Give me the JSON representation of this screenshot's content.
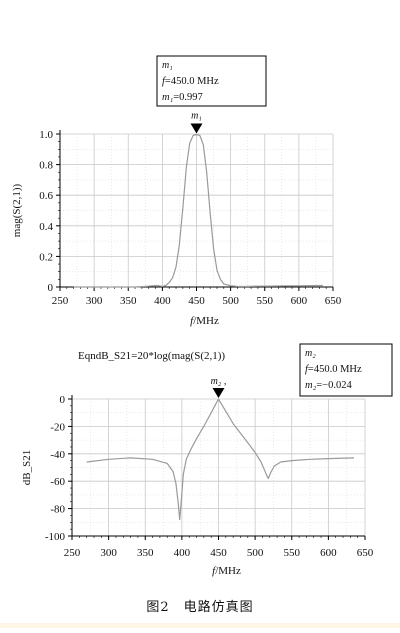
{
  "figure": {
    "caption": "图2　电路仿真图"
  },
  "colors": {
    "curve": "#9a9a9a",
    "grid": "#c8c8c8",
    "axis": "#000000",
    "bottom_strip": "#fdf6e6"
  },
  "chart_data": [
    {
      "type": "line",
      "title": "",
      "xlabel": "f/MHz",
      "ylabel": "mag(S(2,1))",
      "xlim": [
        250,
        650
      ],
      "ylim": [
        0,
        1.0
      ],
      "x_ticks": [
        "250",
        "300",
        "350",
        "400",
        "450",
        "500",
        "550",
        "600",
        "650"
      ],
      "y_ticks": [
        "0",
        "0.2",
        "0.4",
        "0.6",
        "0.8",
        "1.0"
      ],
      "grid": true,
      "series": [
        {
          "x": [
            270,
            300,
            330,
            360,
            380,
            390,
            395,
            400,
            405,
            410,
            415,
            420,
            425,
            430,
            435,
            440,
            445,
            450,
            455,
            460,
            465,
            470,
            475,
            480,
            485,
            490,
            500,
            510,
            520,
            540,
            560,
            580,
            600,
            620,
            635
          ],
          "y": [
            0.0,
            0.0,
            0.0,
            0.0,
            0.005,
            0.01,
            0.008,
            0.004,
            0.01,
            0.03,
            0.06,
            0.13,
            0.28,
            0.52,
            0.78,
            0.94,
            0.99,
            0.997,
            0.99,
            0.93,
            0.75,
            0.48,
            0.25,
            0.11,
            0.05,
            0.02,
            0.008,
            0.004,
            0.003,
            0.005,
            0.006,
            0.007,
            0.008,
            0.009,
            0.01
          ]
        }
      ],
      "marker": {
        "name": "m1",
        "x": 450,
        "y": 0.997,
        "label_name": "m₁",
        "label_f": "f=450.0  MHz",
        "label_value": "m₁=0.997",
        "arrow_label": "m₁"
      }
    },
    {
      "type": "line",
      "title": "EqndB_S21=20*log(mag(S(2,1))",
      "xlabel": "f/MHz",
      "ylabel": "dB_S21",
      "xlim": [
        250,
        650
      ],
      "ylim": [
        -100,
        0
      ],
      "x_ticks": [
        "250",
        "300",
        "350",
        "400",
        "450",
        "500",
        "550",
        "600",
        "650"
      ],
      "y_ticks": [
        "0",
        "-20",
        "-40",
        "-60",
        "-80",
        "-100"
      ],
      "grid": true,
      "series": [
        {
          "x": [
            270,
            300,
            330,
            360,
            380,
            388,
            392,
            395,
            397,
            399,
            402,
            406,
            412,
            420,
            430,
            440,
            448,
            450,
            452,
            460,
            470,
            480,
            490,
            500,
            508,
            513,
            516,
            518,
            521,
            526,
            535,
            550,
            575,
            600,
            635
          ],
          "y": [
            -46,
            -44,
            -43,
            -44,
            -47,
            -53,
            -62,
            -76,
            -88,
            -76,
            -55,
            -44,
            -37,
            -29,
            -20,
            -10,
            -2,
            -0.024,
            -2,
            -9,
            -18,
            -25,
            -32,
            -39,
            -46,
            -52,
            -56,
            -58,
            -54,
            -49,
            -46,
            -45,
            -44,
            -43.5,
            -43
          ],
          "notch_x": 397
        }
      ],
      "marker": {
        "name": "m2",
        "x": 450,
        "y": -0.024,
        "label_name": "m₂",
        "label_f": "f=450.0  MHz",
        "label_value": "m₂=−0.024",
        "arrow_label": "m₂ ,"
      }
    }
  ]
}
